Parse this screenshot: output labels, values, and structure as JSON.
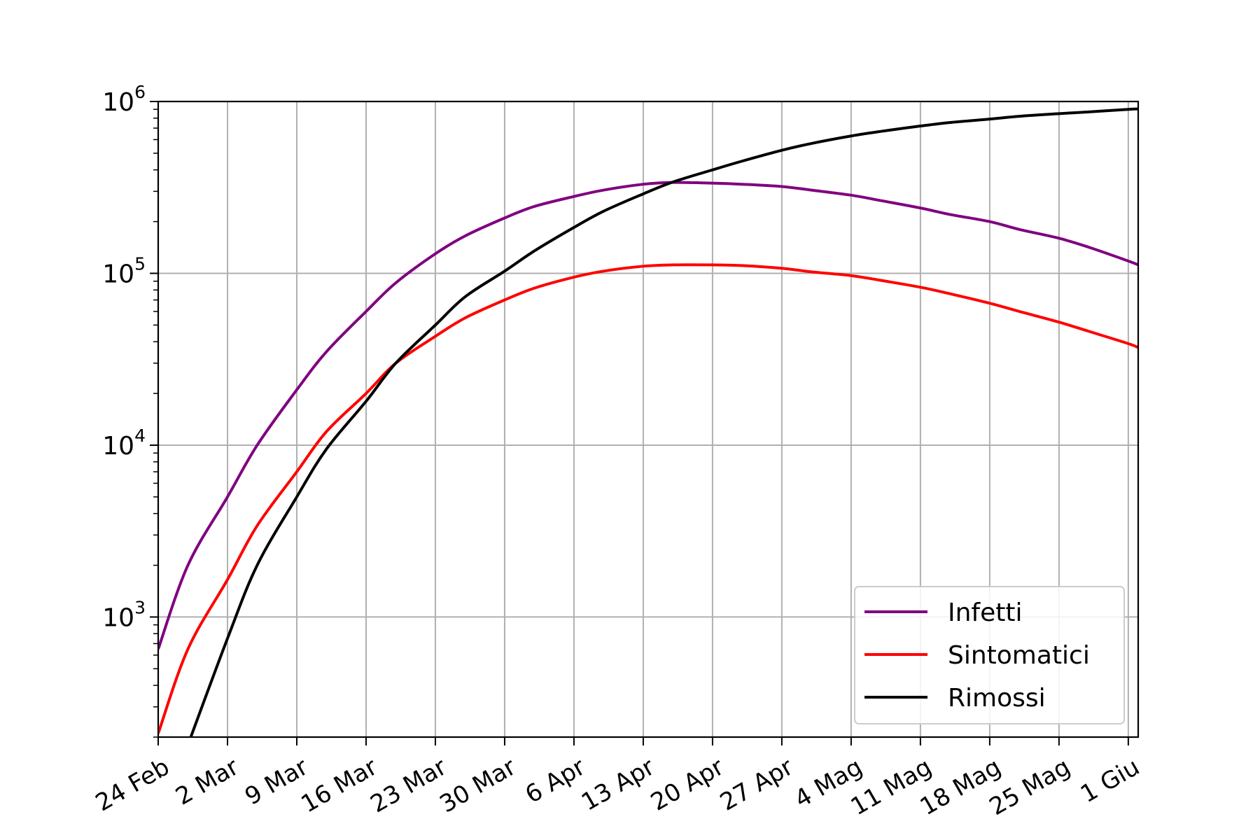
{
  "chart_data": {
    "type": "line",
    "title": "",
    "xlabel": "",
    "ylabel": "",
    "y_scale": "log",
    "ylim": [
      200,
      1000000
    ],
    "xlim": [
      "2020-02-24",
      "2020-06-02"
    ],
    "grid": true,
    "legend_position": "lower-right",
    "xtick_labels": [
      "24 Feb",
      "2 Mar",
      "9 Mar",
      "16 Mar",
      "23 Mar",
      "30 Mar",
      "6 Apr",
      "13 Apr",
      "20 Apr",
      "27 Apr",
      "4 Mag",
      "11 Mag",
      "18 Mag",
      "25 Mag",
      "1 Giu"
    ],
    "xtick_dates": [
      "2020-02-24",
      "2020-03-02",
      "2020-03-09",
      "2020-03-16",
      "2020-03-23",
      "2020-03-30",
      "2020-04-06",
      "2020-04-13",
      "2020-04-20",
      "2020-04-27",
      "2020-05-04",
      "2020-05-11",
      "2020-05-18",
      "2020-05-25",
      "2020-06-01"
    ],
    "ytick_labels": [
      {
        "base": "10",
        "exp": "3",
        "value": 1000
      },
      {
        "base": "10",
        "exp": "4",
        "value": 10000
      },
      {
        "base": "10",
        "exp": "5",
        "value": 100000
      },
      {
        "base": "10",
        "exp": "6",
        "value": 1000000
      }
    ],
    "x": [
      "2020-02-24",
      "2020-02-27",
      "2020-03-02",
      "2020-03-05",
      "2020-03-09",
      "2020-03-12",
      "2020-03-16",
      "2020-03-19",
      "2020-03-23",
      "2020-03-26",
      "2020-03-30",
      "2020-04-02",
      "2020-04-06",
      "2020-04-09",
      "2020-04-13",
      "2020-04-16",
      "2020-04-20",
      "2020-04-23",
      "2020-04-27",
      "2020-04-30",
      "2020-05-04",
      "2020-05-07",
      "2020-05-11",
      "2020-05-14",
      "2020-05-18",
      "2020-05-21",
      "2020-05-25",
      "2020-05-28",
      "2020-06-01",
      "2020-06-02"
    ],
    "series": [
      {
        "name": "Infetti",
        "color": "#800080",
        "values": [
          650,
          2000,
          5000,
          10000,
          21000,
          35000,
          60000,
          88000,
          130000,
          165000,
          210000,
          245000,
          280000,
          305000,
          330000,
          338000,
          335000,
          330000,
          320000,
          305000,
          285000,
          265000,
          240000,
          220000,
          200000,
          180000,
          160000,
          142000,
          118000,
          112000
        ]
      },
      {
        "name": "Sintomatici",
        "color": "#ff0000",
        "values": [
          210,
          650,
          1650,
          3400,
          7000,
          12000,
          20000,
          30000,
          43000,
          55000,
          70000,
          82000,
          95000,
          103000,
          110000,
          112000,
          112000,
          111000,
          107000,
          102000,
          97000,
          91000,
          83000,
          76000,
          67000,
          60000,
          52000,
          46000,
          39000,
          37000
        ]
      },
      {
        "name": "Rimossi",
        "color": "#000000",
        "values": [
          null,
          180,
          750,
          2000,
          5000,
          9500,
          18000,
          30000,
          50000,
          73000,
          103000,
          135000,
          185000,
          230000,
          290000,
          340000,
          400000,
          450000,
          520000,
          570000,
          630000,
          670000,
          720000,
          755000,
          790000,
          820000,
          850000,
          870000,
          900000,
          905000
        ]
      }
    ]
  }
}
